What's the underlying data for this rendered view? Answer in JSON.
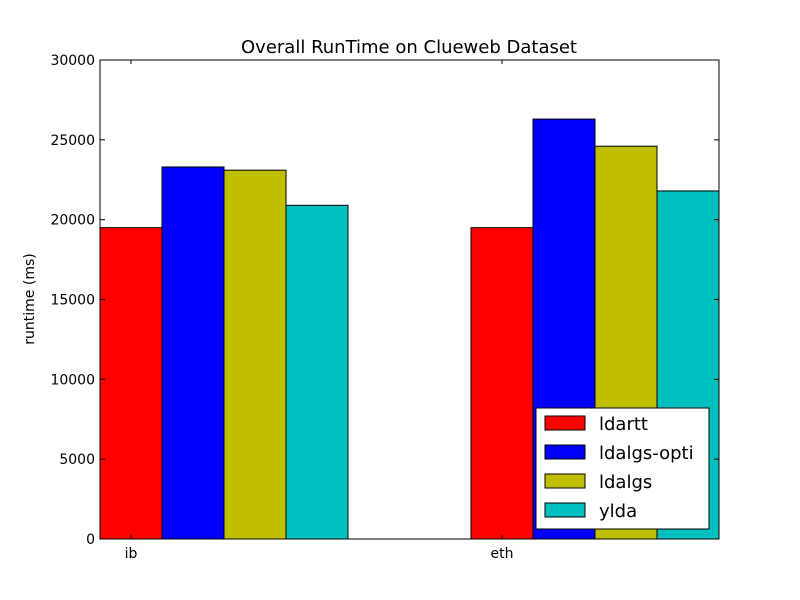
{
  "chart_data": {
    "type": "bar",
    "title": "Overall RunTime on Clueweb Dataset",
    "xlabel": "",
    "ylabel": "runtime (ms)",
    "categories": [
      "ib",
      "eth"
    ],
    "ylim": [
      0,
      30000
    ],
    "yticks": [
      0,
      5000,
      10000,
      15000,
      20000,
      25000,
      30000
    ],
    "ytick_labels": [
      "0",
      "5000",
      "10000",
      "15000",
      "20000",
      "25000",
      "30000"
    ],
    "grid": false,
    "legend_position": "lower-right",
    "series": [
      {
        "name": "ldartt",
        "color": "#ff0000",
        "values": [
          19500,
          19500
        ]
      },
      {
        "name": "ldalgs-opti",
        "color": "#0000ff",
        "values": [
          23300,
          26300
        ]
      },
      {
        "name": "ldalgs",
        "color": "#bfbf00",
        "values": [
          23100,
          24600
        ]
      },
      {
        "name": "ylda",
        "color": "#00bfbf",
        "values": [
          20900,
          21800
        ]
      }
    ]
  }
}
